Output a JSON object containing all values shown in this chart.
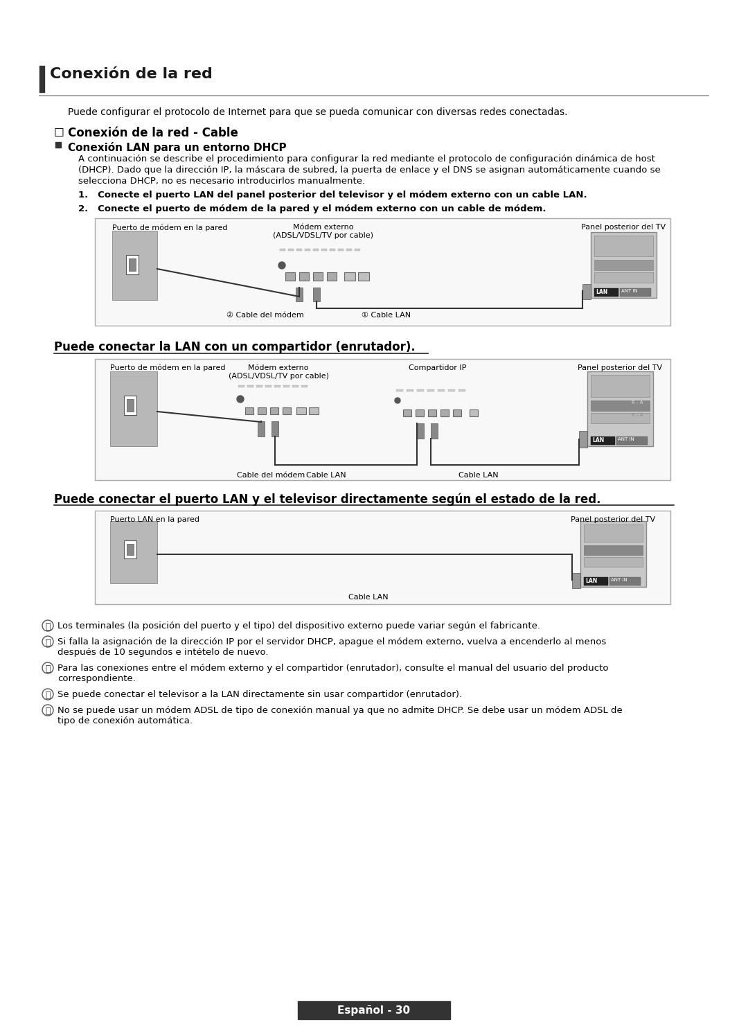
{
  "bg_color": "#ffffff",
  "title": "Conexión de la red",
  "header_intro": "Puede configurar el protocolo de Internet para que se pueda comunicar con diversas redes conectadas.",
  "subtitle1_checkbox": "☐",
  "subtitle1_text": "Conexión de la red - Cable",
  "subtitle2_square": "■",
  "subtitle2_text": "Conexión LAN para un entorno DHCP",
  "para1_lines": [
    "A continuación se describe el procedimiento para configurar la red mediante el protocolo de configuración dinámica de host",
    "(DHCP). Dado que la dirección IP, la máscara de subred, la puerta de enlace y el DNS se asignan automáticamente cuando se",
    "selecciona DHCP, no es necesario introducirlos manualmente."
  ],
  "step1": "1.   Conecte el puerto LAN del panel posterior del televisor y el módem externo con un cable LAN.",
  "step2": "2.   Conecte el puerto de módem de la pared y el módem externo con un cable de módem.",
  "diag1_label_left": "Puerto de módem en la pared",
  "diag1_label_center": "Módem externo\n(ADSL/VDSL/TV por cable)",
  "diag1_label_right": "Panel posterior del TV",
  "diag1_cable1": "② Cable del módem",
  "diag1_cable2": "① Cable LAN",
  "section2_title": "Puede conectar la LAN con un compartidor (enrutador).",
  "diag2_label_left": "Puerto de módem en la pared",
  "diag2_label_center_left": "Módem externo\n(ADSL/VDSL/TV por cable)",
  "diag2_label_center_right": "Compartidor IP",
  "diag2_label_right": "Panel posterior del TV",
  "diag2_cable1": "Cable del módem",
  "diag2_cable2": "Cable LAN",
  "diag2_cable3": "Cable LAN",
  "section3_title": "Puede conectar el puerto LAN y el televisor directamente según el estado de la red.",
  "diag3_label_left": "Puerto LAN en la pared",
  "diag3_label_right": "Panel posterior del TV",
  "diag3_cable": "Cable LAN",
  "notes": [
    "Los terminales (la posición del puerto y el tipo) del dispositivo externo puede variar según el fabricante.",
    "Si falla la asignación de la dirección IP por el servidor DHCP, apague el módem externo, vuelva a encenderlo al menos\ndespués de 10 segundos e intételo de nuevo.",
    "Para las conexiones entre el módem externo y el compartidor (enrutador), consulte el manual del usuario del producto\ncorrespondiente.",
    "Se puede conectar el televisor a la LAN directamente sin usar compartidor (enrutador).",
    "No se puede usar un módem ADSL de tipo de conexión manual ya que no admite DHCP. Se debe usar un módem ADSL de\ntipo de conexión automática."
  ],
  "footer": "Español - 30"
}
